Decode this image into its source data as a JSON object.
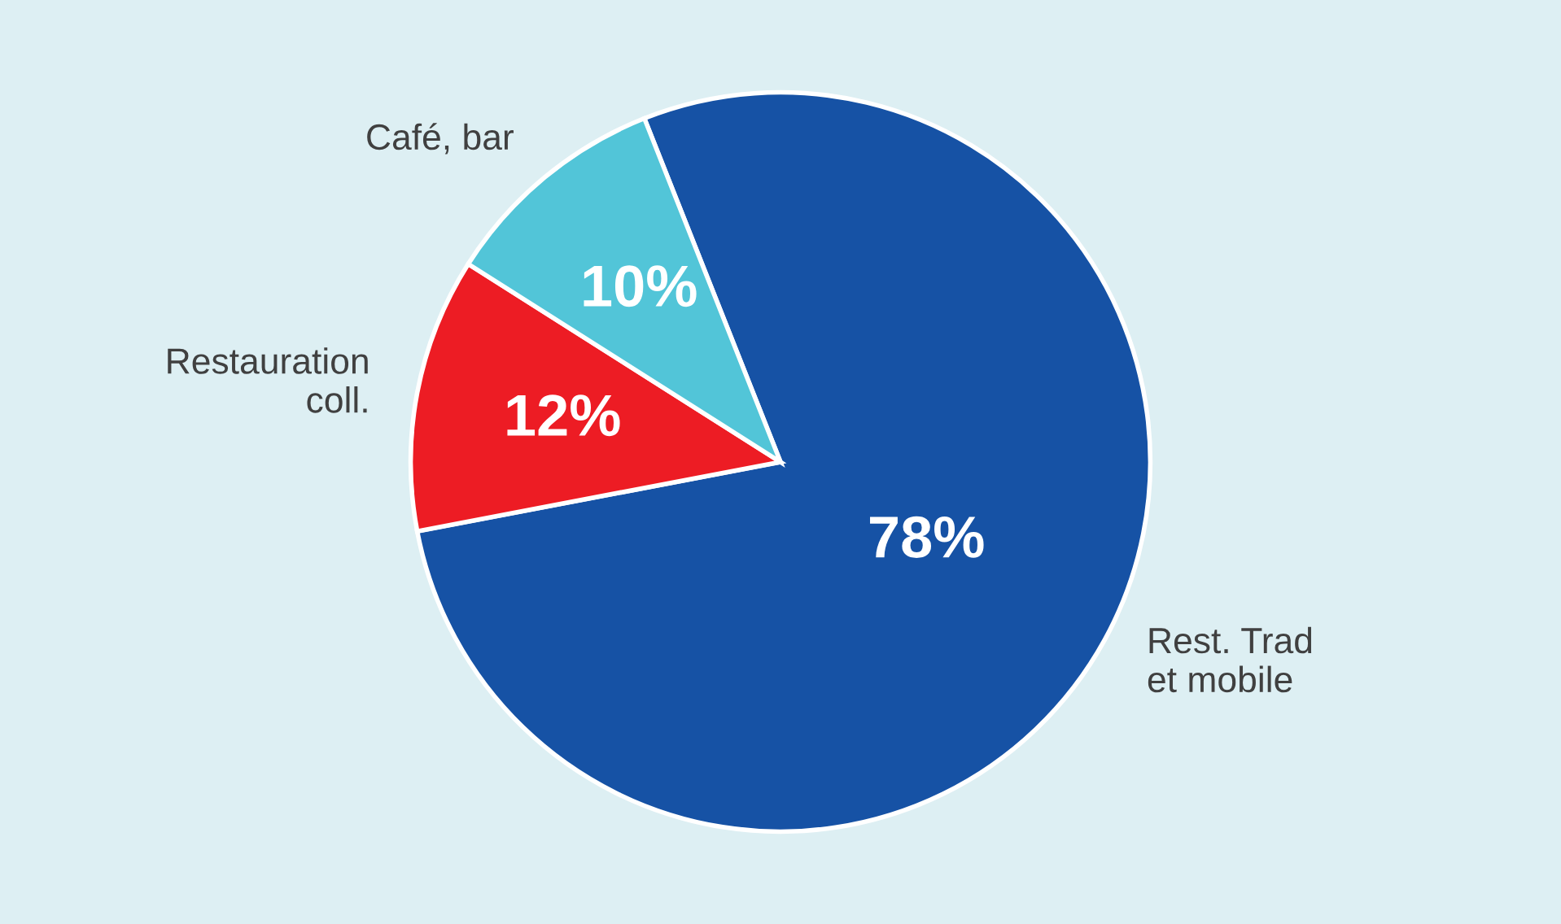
{
  "chart_data": {
    "type": "pie",
    "categories": [
      "Rest. Trad\net mobile",
      "Restauration\ncoll.",
      "Café, bar"
    ],
    "values": [
      78,
      12,
      10
    ],
    "colors": [
      "#1652a5",
      "#ed1c24",
      "#52c5d8"
    ],
    "value_labels": [
      "78%",
      "12%",
      "10%"
    ]
  }
}
